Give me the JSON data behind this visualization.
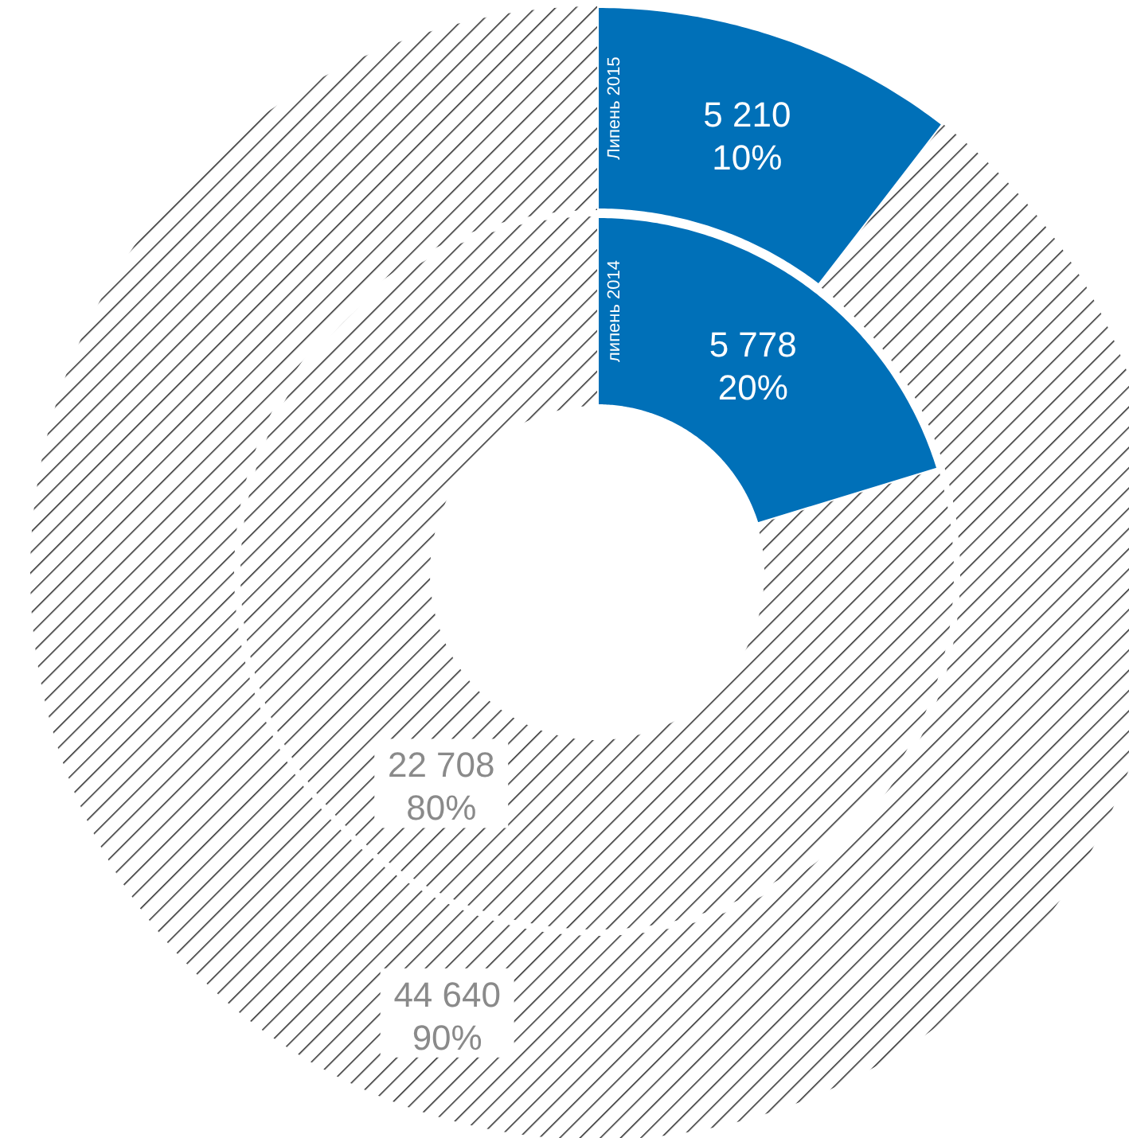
{
  "chart_data": [
    {
      "type": "donut",
      "categories": [
        null,
        null
      ],
      "series": [
        {
          "name": "Липень 2015",
          "values": [
            5210,
            44640
          ],
          "colors": [
            "#0070b8",
            "#333333"
          ],
          "value_labels": [
            "5 210\n10%",
            "44 640\n90%"
          ]
        }
      ]
    },
    {
      "type": "donut",
      "categories": [
        null,
        null
      ],
      "series": [
        {
          "name": "липень 2014",
          "values": [
            5778,
            22708
          ],
          "colors": [
            "#0070b8",
            "#333333"
          ],
          "value_labels": [
            "5 778\n20%",
            "22 708\n80%"
          ]
        }
      ]
    }
  ]
}
